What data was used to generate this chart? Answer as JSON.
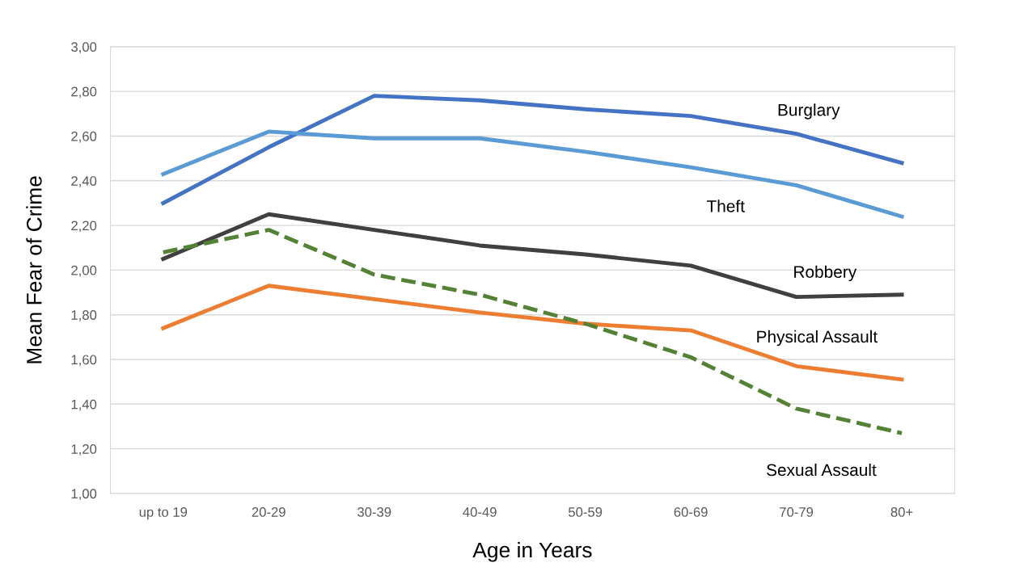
{
  "chart_data": {
    "type": "line",
    "xlabel": "Age in Years",
    "ylabel": "Mean Fear of Crime",
    "categories": [
      "up to 19",
      "20-29",
      "30-39",
      "40-49",
      "50-59",
      "60-69",
      "70-79",
      "80+"
    ],
    "ylim": [
      1.0,
      3.0
    ],
    "yticks": [
      {
        "value": 1.0,
        "label": "1,00"
      },
      {
        "value": 1.2,
        "label": "1,20"
      },
      {
        "value": 1.4,
        "label": "1,40"
      },
      {
        "value": 1.6,
        "label": "1,60"
      },
      {
        "value": 1.8,
        "label": "1,80"
      },
      {
        "value": 2.0,
        "label": "2,00"
      },
      {
        "value": 2.2,
        "label": "2,20"
      },
      {
        "value": 2.4,
        "label": "2,40"
      },
      {
        "value": 2.6,
        "label": "2,60"
      },
      {
        "value": 2.8,
        "label": "2,80"
      },
      {
        "value": 3.0,
        "label": "3,00"
      }
    ],
    "grid": "y",
    "legend": false,
    "marker": "none",
    "series": [
      {
        "name": "Burglary",
        "color": "#4472c4",
        "line_style": "solid",
        "values": [
          2.3,
          2.55,
          2.78,
          2.76,
          2.72,
          2.69,
          2.61,
          2.48
        ]
      },
      {
        "name": "Theft",
        "color": "#5b9bd5",
        "line_style": "solid",
        "values": [
          2.43,
          2.62,
          2.59,
          2.59,
          2.53,
          2.46,
          2.38,
          2.24
        ]
      },
      {
        "name": "Robbery",
        "color": "#404040",
        "line_style": "solid",
        "values": [
          2.05,
          2.25,
          2.18,
          2.11,
          2.07,
          2.02,
          1.88,
          1.89
        ]
      },
      {
        "name": "Physical Assault",
        "color": "#ed7d31",
        "line_style": "solid",
        "values": [
          1.74,
          1.93,
          1.87,
          1.81,
          1.76,
          1.73,
          1.57,
          1.51
        ]
      },
      {
        "name": "Sexual Assault",
        "color": "#548235",
        "line_style": "dashed",
        "values": [
          2.08,
          2.18,
          1.98,
          1.89,
          1.76,
          1.61,
          1.38,
          1.27
        ]
      }
    ]
  }
}
